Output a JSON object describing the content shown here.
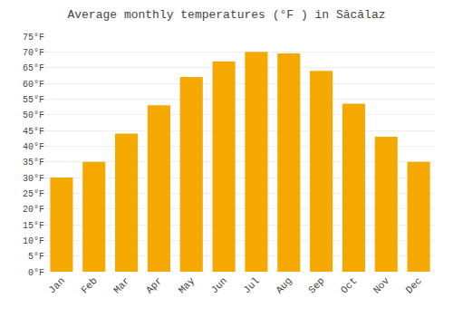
{
  "chart_data": {
    "type": "bar",
    "title": "Average monthly temperatures (°F ) in Săcălaz",
    "categories": [
      "Jan",
      "Feb",
      "Mar",
      "Apr",
      "May",
      "Jun",
      "Jul",
      "Aug",
      "Sep",
      "Oct",
      "Nov",
      "Dec"
    ],
    "values": [
      30,
      35,
      44,
      53,
      62,
      67,
      70,
      69.5,
      64,
      53.5,
      43,
      35
    ],
    "color": "#F5A800",
    "ylim": [
      0,
      75
    ],
    "yticks": [
      {
        "value": 0,
        "label": "0°F"
      },
      {
        "value": 5,
        "label": "5°F"
      },
      {
        "value": 10,
        "label": "10°F"
      },
      {
        "value": 15,
        "label": "15°F"
      },
      {
        "value": 20,
        "label": "20°F"
      },
      {
        "value": 25,
        "label": "25°F"
      },
      {
        "value": 30,
        "label": "30°F"
      },
      {
        "value": 35,
        "label": "35°F"
      },
      {
        "value": 40,
        "label": "40°F"
      },
      {
        "value": 45,
        "label": "45°F"
      },
      {
        "value": 50,
        "label": "50°F"
      },
      {
        "value": 55,
        "label": "55°F"
      },
      {
        "value": 60,
        "label": "60°F"
      },
      {
        "value": 65,
        "label": "65°F"
      },
      {
        "value": 70,
        "label": "70°F"
      },
      {
        "value": 75,
        "label": "75°F"
      }
    ],
    "grid": true
  }
}
